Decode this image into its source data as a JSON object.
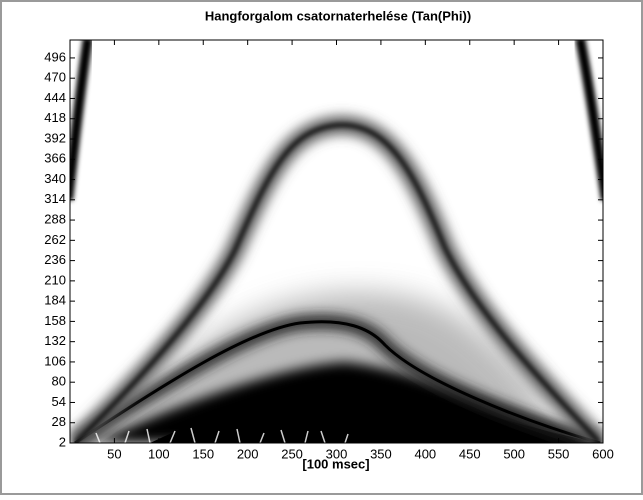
{
  "chart_data": {
    "type": "image",
    "title": "Hangforgalom csatornaterhelése (Tan(Phi))",
    "xlabel": "[100 msec]",
    "xlim": [
      0,
      600
    ],
    "ylim": [
      2,
      519
    ],
    "xticks": [
      50,
      100,
      150,
      200,
      250,
      300,
      350,
      400,
      450,
      500,
      550,
      600
    ],
    "yticks": [
      2,
      28,
      54,
      80,
      106,
      132,
      158,
      184,
      210,
      236,
      262,
      288,
      314,
      340,
      366,
      392,
      418,
      444,
      470,
      496
    ]
  }
}
